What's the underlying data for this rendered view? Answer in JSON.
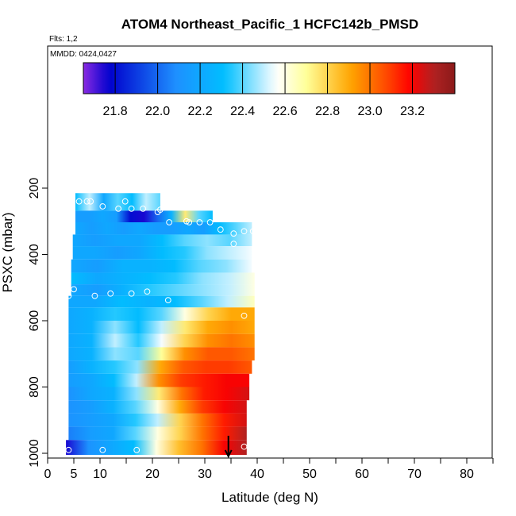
{
  "chart_data": {
    "type": "heatmap",
    "title": "ATOM4 Northeast_Pacific_1 HCFC142b_PMSD",
    "flts_label": "Flts: 1,2",
    "mmdd_label": "MMDD: 0424,0427",
    "xlabel": "Latitude (deg N)",
    "ylabel": "PSXC (mbar)",
    "xlim": [
      0,
      85
    ],
    "ylim": [
      1000,
      0
    ],
    "x_ticks": [
      0,
      5,
      10,
      20,
      30,
      40,
      50,
      60,
      70,
      80
    ],
    "x_minor_ticks": [
      15,
      25,
      35,
      45,
      55,
      65,
      75,
      85
    ],
    "y_ticks": [
      200,
      400,
      600,
      800,
      1000
    ],
    "grid": false,
    "colorbar": {
      "min": 21.65,
      "max": 23.4,
      "ticks": [
        21.8,
        22.0,
        22.2,
        22.4,
        22.6,
        22.8,
        23.0,
        23.2
      ],
      "tick_labels": [
        "21.8",
        "22.0",
        "22.2",
        "22.4",
        "22.6",
        "22.8",
        "23.0",
        "23.2"
      ],
      "colors": [
        "#8a2be2",
        "#0000cd",
        "#1e90ff",
        "#00bfff",
        "#ffffff",
        "#ffff99",
        "#ffa500",
        "#ff4500",
        "#ff0000",
        "#b22222",
        "#8b1a1a"
      ],
      "placement": "top"
    },
    "bands": [
      {
        "p_top": 215,
        "p_bot": 268,
        "lat_start": 5.3,
        "lat_end": 21.5,
        "values": [
          22.3,
          22.5,
          22.2,
          22.4,
          22.3,
          22.5,
          22.4
        ]
      },
      {
        "p_top": 268,
        "p_bot": 303,
        "lat_start": 5.3,
        "lat_end": 31.5,
        "values": [
          22.15,
          22.15,
          22.2,
          22.15,
          21.8,
          21.75,
          22.0,
          22.25,
          22.75,
          22.4,
          22.3
        ]
      },
      {
        "p_top": 303,
        "p_bot": 340,
        "lat_start": 5.3,
        "lat_end": 39.0,
        "values": [
          22.2,
          22.15,
          22.2,
          22.15,
          22.2,
          22.15,
          22.15,
          22.2,
          22.15,
          22.3,
          22.4,
          22.5
        ]
      },
      {
        "p_top": 340,
        "p_bot": 375,
        "lat_start": 4.8,
        "lat_end": 39.0,
        "values": [
          22.2,
          22.15,
          22.2,
          22.2,
          22.3,
          22.4,
          22.45,
          22.4,
          22.5
        ]
      },
      {
        "p_top": 375,
        "p_bot": 415,
        "lat_start": 4.8,
        "lat_end": 39.0,
        "values": [
          22.2,
          22.2,
          22.15,
          22.2,
          22.3,
          22.35,
          22.45,
          22.5,
          22.55
        ]
      },
      {
        "p_top": 415,
        "p_bot": 455,
        "lat_start": 4.5,
        "lat_end": 39.0,
        "values": [
          22.2,
          22.15,
          22.25,
          22.25,
          22.3,
          22.4,
          22.45,
          22.55
        ]
      },
      {
        "p_top": 455,
        "p_bot": 490,
        "lat_start": 4.5,
        "lat_end": 39.5,
        "values": [
          22.3,
          22.2,
          22.25,
          22.3,
          22.35,
          22.45,
          22.5,
          22.6
        ]
      },
      {
        "p_top": 490,
        "p_bot": 525,
        "lat_start": 4.5,
        "lat_end": 39.5,
        "values": [
          22.2,
          22.15,
          22.25,
          22.35,
          22.4,
          22.45,
          22.5,
          22.6
        ]
      },
      {
        "p_top": 525,
        "p_bot": 560,
        "lat_start": 4.0,
        "lat_end": 39.5,
        "values": [
          22.2,
          22.2,
          22.3,
          22.25,
          22.3,
          22.4,
          22.5,
          22.65
        ]
      },
      {
        "p_top": 560,
        "p_bot": 600,
        "lat_start": 4.0,
        "lat_end": 39.5,
        "values": [
          22.2,
          22.25,
          22.35,
          22.3,
          22.4,
          22.6,
          22.8,
          22.9,
          22.9
        ]
      },
      {
        "p_top": 600,
        "p_bot": 640,
        "lat_start": 4.0,
        "lat_end": 39.5,
        "values": [
          22.2,
          22.25,
          22.45,
          22.3,
          22.5,
          22.75,
          22.9,
          22.95,
          22.9
        ]
      },
      {
        "p_top": 640,
        "p_bot": 680,
        "lat_start": 4.0,
        "lat_end": 39.5,
        "values": [
          22.2,
          22.25,
          22.5,
          22.35,
          22.55,
          22.8,
          22.95,
          23.0,
          22.95
        ]
      },
      {
        "p_top": 680,
        "p_bot": 720,
        "lat_start": 4.0,
        "lat_end": 39.5,
        "values": [
          22.2,
          22.25,
          22.45,
          22.4,
          22.7,
          22.95,
          23.05,
          23.05,
          23.0
        ]
      },
      {
        "p_top": 720,
        "p_bot": 760,
        "lat_start": 4.0,
        "lat_end": 39.0,
        "values": [
          22.15,
          22.25,
          22.35,
          22.45,
          22.9,
          23.05,
          23.1,
          23.1,
          23.05
        ]
      },
      {
        "p_top": 760,
        "p_bot": 800,
        "lat_start": 4.0,
        "lat_end": 38.5,
        "values": [
          22.15,
          22.2,
          22.3,
          22.5,
          22.95,
          23.1,
          23.15,
          23.2,
          23.2
        ]
      },
      {
        "p_top": 800,
        "p_bot": 840,
        "lat_start": 4.0,
        "lat_end": 38.5,
        "values": [
          22.1,
          22.2,
          22.25,
          22.45,
          22.75,
          23.0,
          23.15,
          23.2,
          23.25
        ]
      },
      {
        "p_top": 840,
        "p_bot": 880,
        "lat_start": 4.0,
        "lat_end": 38.0,
        "values": [
          22.1,
          22.15,
          22.25,
          22.4,
          22.6,
          22.9,
          23.1,
          23.2,
          23.25
        ]
      },
      {
        "p_top": 880,
        "p_bot": 920,
        "lat_start": 4.0,
        "lat_end": 38.0,
        "values": [
          22.1,
          22.15,
          22.2,
          22.35,
          22.5,
          22.8,
          23.0,
          23.15,
          23.25
        ]
      },
      {
        "p_top": 920,
        "p_bot": 960,
        "lat_start": 4.0,
        "lat_end": 38.0,
        "values": [
          22.05,
          22.15,
          22.2,
          22.4,
          22.6,
          22.8,
          23.0,
          23.15,
          23.3
        ]
      },
      {
        "p_top": 960,
        "p_bot": 1005,
        "lat_start": 3.5,
        "lat_end": 38.0,
        "values": [
          21.75,
          22.1,
          22.2,
          22.3,
          22.6,
          22.85,
          23.0,
          23.2,
          23.3
        ]
      }
    ],
    "obs_points": [
      {
        "lat": 6.0,
        "p": 240
      },
      {
        "lat": 7.5,
        "p": 240
      },
      {
        "lat": 8.2,
        "p": 240
      },
      {
        "lat": 10.5,
        "p": 255
      },
      {
        "lat": 13.5,
        "p": 262
      },
      {
        "lat": 14.8,
        "p": 240
      },
      {
        "lat": 16.0,
        "p": 262
      },
      {
        "lat": 18.2,
        "p": 262
      },
      {
        "lat": 21.0,
        "p": 272
      },
      {
        "lat": 21.5,
        "p": 265
      },
      {
        "lat": 23.2,
        "p": 303
      },
      {
        "lat": 26.5,
        "p": 300
      },
      {
        "lat": 27.0,
        "p": 303
      },
      {
        "lat": 29.0,
        "p": 303
      },
      {
        "lat": 31.0,
        "p": 303
      },
      {
        "lat": 33.0,
        "p": 325
      },
      {
        "lat": 35.5,
        "p": 337
      },
      {
        "lat": 37.5,
        "p": 330
      },
      {
        "lat": 39.2,
        "p": 330
      },
      {
        "lat": 35.5,
        "p": 368
      },
      {
        "lat": 5.0,
        "p": 505
      },
      {
        "lat": 4.0,
        "p": 525
      },
      {
        "lat": 9.0,
        "p": 525
      },
      {
        "lat": 12.0,
        "p": 518
      },
      {
        "lat": 16.0,
        "p": 518
      },
      {
        "lat": 19.0,
        "p": 512
      },
      {
        "lat": 23.0,
        "p": 538
      },
      {
        "lat": 37.5,
        "p": 585
      },
      {
        "lat": 4.0,
        "p": 990
      },
      {
        "lat": 10.5,
        "p": 990
      },
      {
        "lat": 17.0,
        "p": 990
      },
      {
        "lat": 37.5,
        "p": 980
      }
    ],
    "marker": {
      "lat": 34.5,
      "p": 995,
      "symbol": "down-arrow"
    }
  }
}
